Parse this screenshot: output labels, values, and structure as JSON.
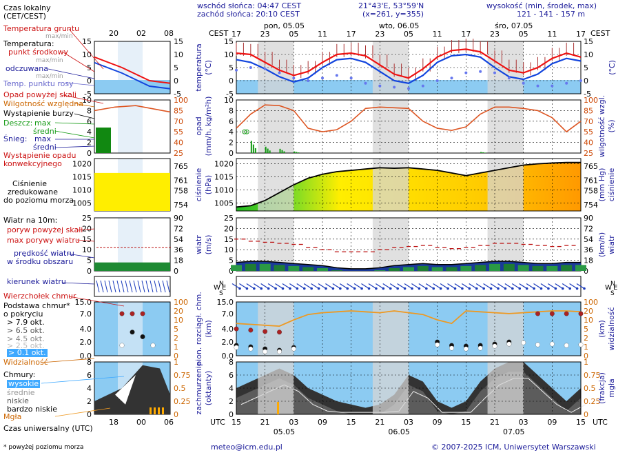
{
  "header": {
    "sunrise": "wschód słońca: 04:47 CEST",
    "sunset": "zachód słońca: 20:10 CEST",
    "coords": "21°43'E, 53°59'N",
    "grid": "(x=261,  y=355)",
    "height_title": "wysokość (min, środek, max)",
    "height_values": "121 - 141 - 157 m"
  },
  "footer": {
    "note": "* powyżej poziomu morza",
    "email": "meteo@icm.edu.pl",
    "copyright": "© 2007-2025 ICM, Uniwersytet Warszawski"
  },
  "legend": {
    "local_time": "Czas lokalny",
    "local_time2": "(CET/CEST)",
    "ground_temp": "Temperatura gruntu",
    "max_min": "max/min",
    "temperature": "Temperatura:",
    "mid_point": "punkt środkowy",
    "max_min2": "max/min",
    "felt": "odczuwana",
    "max_min3": "max/min",
    "dew": "Temp. punktu rosy",
    "rain_above": "Opad powyżej skali",
    "humidity": "Wilgotność względna",
    "storm": "Wystąpienie burzy",
    "rain": "Deszcz:",
    "max": "max",
    "mean": "średni",
    "snow": "Śnieg:",
    "max2": "max",
    "mean2": "średni",
    "conv1": "Wystąpienie opadu",
    "conv2": "konwekcyjnego",
    "pressure1": "Ciśnienie",
    "pressure2": "zredukowane",
    "pressure3": "do poziomu morza",
    "wind_title": "Wiatr na 10m:",
    "gust_above": "poryw powyżej skali",
    "gust_max": "max porywy wiatru",
    "wind_speed1": "prędkość wiatru",
    "wind_speed2": "w środku obszaru",
    "wind_dir": "kierunek wiatru",
    "cloud_top": "Wierzchołek chmur",
    "cloud_base1": "Podstawa chmur*",
    "cloud_base2": "o pokryciu",
    "okt1": "> 7.9 okt.",
    "okt2": "> 6.5 okt.",
    "okt3": "> 4.5 okt.",
    "okt4": "> 2.5 okt.",
    "okt5": "> 0.1 okt.",
    "visibility": "Widzialność",
    "clouds": "Chmury:",
    "high": "wysokie",
    "mid": "średnie",
    "low": "niskie",
    "vlow": "bardzo niskie",
    "fog": "Mgła",
    "utc": "Czas uniwersalny (UTC)"
  },
  "axes": {
    "cest": "CEST",
    "utc": "UTC",
    "days": [
      "pon, 05.05",
      "wto, 06.05",
      "śro, 07.05"
    ],
    "utc_days": [
      "05.05",
      "06.05",
      "07.05"
    ],
    "cest_ticks": [
      "17",
      "23",
      "05",
      "11",
      "17",
      "23",
      "05",
      "11",
      "17",
      "23",
      "05",
      "11",
      "17"
    ],
    "utc_ticks": [
      "15",
      "21",
      "03",
      "09",
      "15",
      "21",
      "03",
      "09",
      "15",
      "21",
      "03",
      "09",
      "15"
    ],
    "small_top_ticks": [
      "20",
      "02",
      "08"
    ],
    "small_bottom_ticks": [
      "18",
      "00",
      "06"
    ],
    "left_labels": {
      "temp": "temperatura",
      "temp_u": "(°C)",
      "rain": "opad",
      "rain_u": "(mm/h, kg/m²h)",
      "press": "ciśnienie",
      "press_u": "(hPa)",
      "wind": "wiatr",
      "wind_u": "(m/s)",
      "cloud": "pion. rozciągł. chm.",
      "cloud_u": "(km)",
      "cover": "zachmurzenie",
      "cover_u": "(oktanty)"
    },
    "right_labels": {
      "temp": "(°C)",
      "hum": "wilgotność wzgl.",
      "hum_u": "(%)",
      "press": "ciśnienie",
      "press_u": "(mm Hg)",
      "wind": "wiatr",
      "wind_u": "(km/h)",
      "vis": "widzialność",
      "vis_u": "(km)",
      "fog": "mgła",
      "fog_u": "(frakcja)"
    },
    "compass": [
      "N",
      "W",
      "E",
      "S"
    ]
  },
  "chart_data": [
    {
      "type": "line",
      "name_key": "temperature",
      "x_hours": [
        0,
        3,
        6,
        9,
        12,
        15,
        18,
        21,
        24,
        27,
        30,
        33,
        36,
        39,
        42,
        45,
        48,
        51,
        54,
        57,
        60,
        63,
        66,
        69,
        72
      ],
      "series": [
        {
          "name": "punkt środkowy",
          "values": [
            10.5,
            10,
            7,
            4,
            2,
            3.5,
            7,
            10,
            10.5,
            9.5,
            6,
            2.5,
            1,
            4.5,
            9,
            11.5,
            12,
            11,
            7.5,
            4,
            3,
            5,
            8.5,
            10.5,
            9
          ]
        },
        {
          "name": "odczuwana",
          "values": [
            8,
            7,
            4.5,
            1.5,
            -0.5,
            1,
            5,
            8,
            8.5,
            7,
            3.5,
            0,
            -1,
            2,
            7,
            9.5,
            10,
            9,
            5,
            1.5,
            0.5,
            2.5,
            6.5,
            8.5,
            7.5
          ]
        },
        {
          "name": "Temp. punktu rosy",
          "values": [
            4,
            5,
            4.5,
            3,
            1,
            0,
            1,
            2,
            1,
            -1,
            -2,
            -2.5,
            -3,
            -2,
            0,
            1,
            3,
            3.5,
            3,
            1,
            -1,
            -2,
            -2,
            -1,
            0
          ]
        }
      ],
      "ylim": [
        -5,
        15
      ],
      "yticks": [
        -5,
        0,
        5,
        10,
        15
      ]
    },
    {
      "type": "bar",
      "name_key": "rain",
      "x_hours": [
        0,
        3,
        6,
        9,
        12,
        15,
        18,
        21,
        24,
        27,
        30,
        33,
        36,
        39,
        42,
        45,
        48,
        51,
        54,
        57,
        60,
        63,
        66,
        69,
        72
      ],
      "humidity": [
        60,
        80,
        93,
        92,
        85,
        60,
        55,
        58,
        70,
        88,
        90,
        89,
        88,
        70,
        60,
        57,
        62,
        80,
        90,
        90,
        88,
        85,
        75,
        55,
        70
      ],
      "rain_mm": [
        0,
        2.3,
        1.2,
        0.8,
        0.3,
        0,
        0,
        0,
        0,
        0,
        0,
        0,
        0,
        0,
        0,
        0,
        0,
        0.2,
        0,
        0,
        0,
        0,
        0,
        0,
        0
      ],
      "ylim": [
        0,
        10
      ],
      "yticks": [
        0,
        2,
        4,
        6,
        8,
        10
      ],
      "y2ticks": [
        25,
        40,
        55,
        70,
        85,
        100
      ]
    },
    {
      "type": "area",
      "name_key": "pressure",
      "x_hours": [
        0,
        3,
        6,
        9,
        12,
        15,
        18,
        21,
        24,
        27,
        30,
        33,
        36,
        39,
        42,
        45,
        48,
        51,
        54,
        57,
        60,
        63,
        66,
        69,
        72
      ],
      "values": [
        1003.5,
        1004,
        1006,
        1009,
        1012,
        1014.5,
        1016,
        1017,
        1017.5,
        1018,
        1018.5,
        1018.3,
        1018.5,
        1018,
        1017.5,
        1016.5,
        1015.5,
        1016.5,
        1017.5,
        1018.5,
        1019.5,
        1020,
        1020.3,
        1020.5,
        1020.5
      ],
      "ylim": [
        1002,
        1022
      ],
      "yticks": [
        1005,
        1010,
        1015,
        1020
      ],
      "y2ticks": [
        754,
        758,
        761,
        765
      ]
    },
    {
      "type": "line",
      "name_key": "wind",
      "x_hours": [
        0,
        3,
        6,
        9,
        12,
        15,
        18,
        21,
        24,
        27,
        30,
        33,
        36,
        39,
        42,
        45,
        48,
        51,
        54,
        57,
        60,
        63,
        66,
        69,
        72
      ],
      "speed": [
        4,
        4.5,
        4.5,
        4,
        3.5,
        3,
        2.5,
        1.5,
        1,
        1,
        1.5,
        2.5,
        3,
        3.5,
        3,
        3,
        3.5,
        4,
        4.5,
        4.5,
        4,
        3.5,
        3.5,
        4,
        4
      ],
      "gust": [
        15,
        14,
        13.5,
        13,
        12.5,
        11,
        10,
        9,
        9,
        9,
        10,
        11,
        11.5,
        12,
        11,
        10.5,
        11,
        12,
        13,
        13,
        12.5,
        12,
        11.5,
        12,
        12
      ],
      "ylim": [
        0,
        25
      ],
      "yticks": [
        0,
        5,
        10,
        15,
        20,
        25
      ],
      "y2ticks": [
        0,
        18,
        36,
        54,
        72,
        90
      ]
    },
    {
      "type": "scatter",
      "name_key": "clouds",
      "visibility_km": [
        8,
        7.5,
        7,
        6.5,
        10,
        16,
        18,
        19,
        20,
        19,
        18,
        20,
        18,
        16,
        10,
        8,
        20,
        19,
        18,
        17,
        18,
        19,
        20,
        20,
        19
      ],
      "ylim": [
        0,
        15
      ],
      "yticks": [
        0,
        2,
        4,
        7,
        15
      ],
      "y2ticks": [
        0,
        1,
        2,
        5,
        10,
        20,
        100
      ]
    },
    {
      "type": "area",
      "name_key": "cloudcover",
      "low_octants": [
        4,
        5,
        6,
        7,
        6,
        4,
        3,
        2,
        1.5,
        1,
        1.5,
        3,
        6,
        5,
        2,
        1,
        2,
        5,
        7,
        8,
        8,
        6,
        4,
        2,
        4
      ],
      "ylim": [
        0,
        8
      ],
      "yticks": [
        0,
        2,
        4,
        6,
        8
      ],
      "y2ticks": [
        0,
        0.25,
        0.5,
        0.75,
        1
      ]
    }
  ]
}
